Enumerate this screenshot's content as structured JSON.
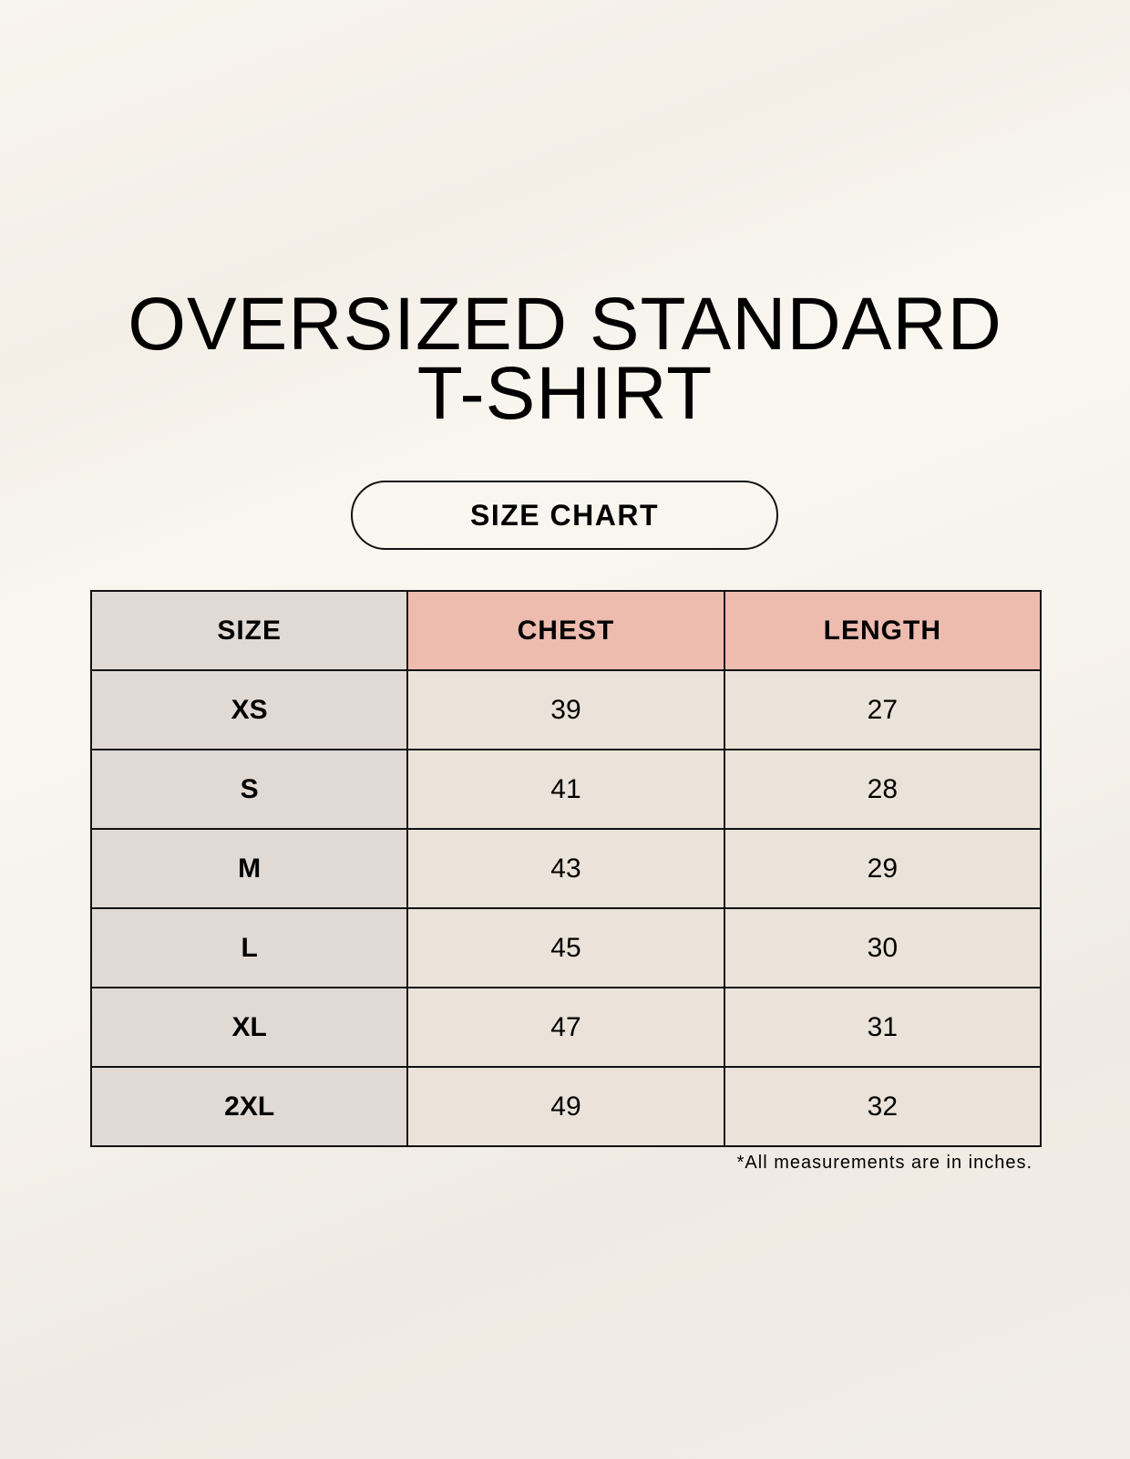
{
  "title": {
    "line1": "OVERSIZED STANDARD",
    "line2": "T-SHIRT"
  },
  "badge": "SIZE CHART",
  "colors": {
    "size_column": "#e1d9d4",
    "header_accent": "#edbcaf",
    "value_cells": "#ebe3d9"
  },
  "table": {
    "headers": [
      "SIZE",
      "CHEST",
      "LENGTH"
    ],
    "rows": [
      [
        "XS",
        "39",
        "27"
      ],
      [
        "S",
        "41",
        "28"
      ],
      [
        "M",
        "43",
        "29"
      ],
      [
        "L",
        "45",
        "30"
      ],
      [
        "XL",
        "47",
        "31"
      ],
      [
        "2XL",
        "49",
        "32"
      ]
    ]
  },
  "footnote": "*All measurements are in inches."
}
